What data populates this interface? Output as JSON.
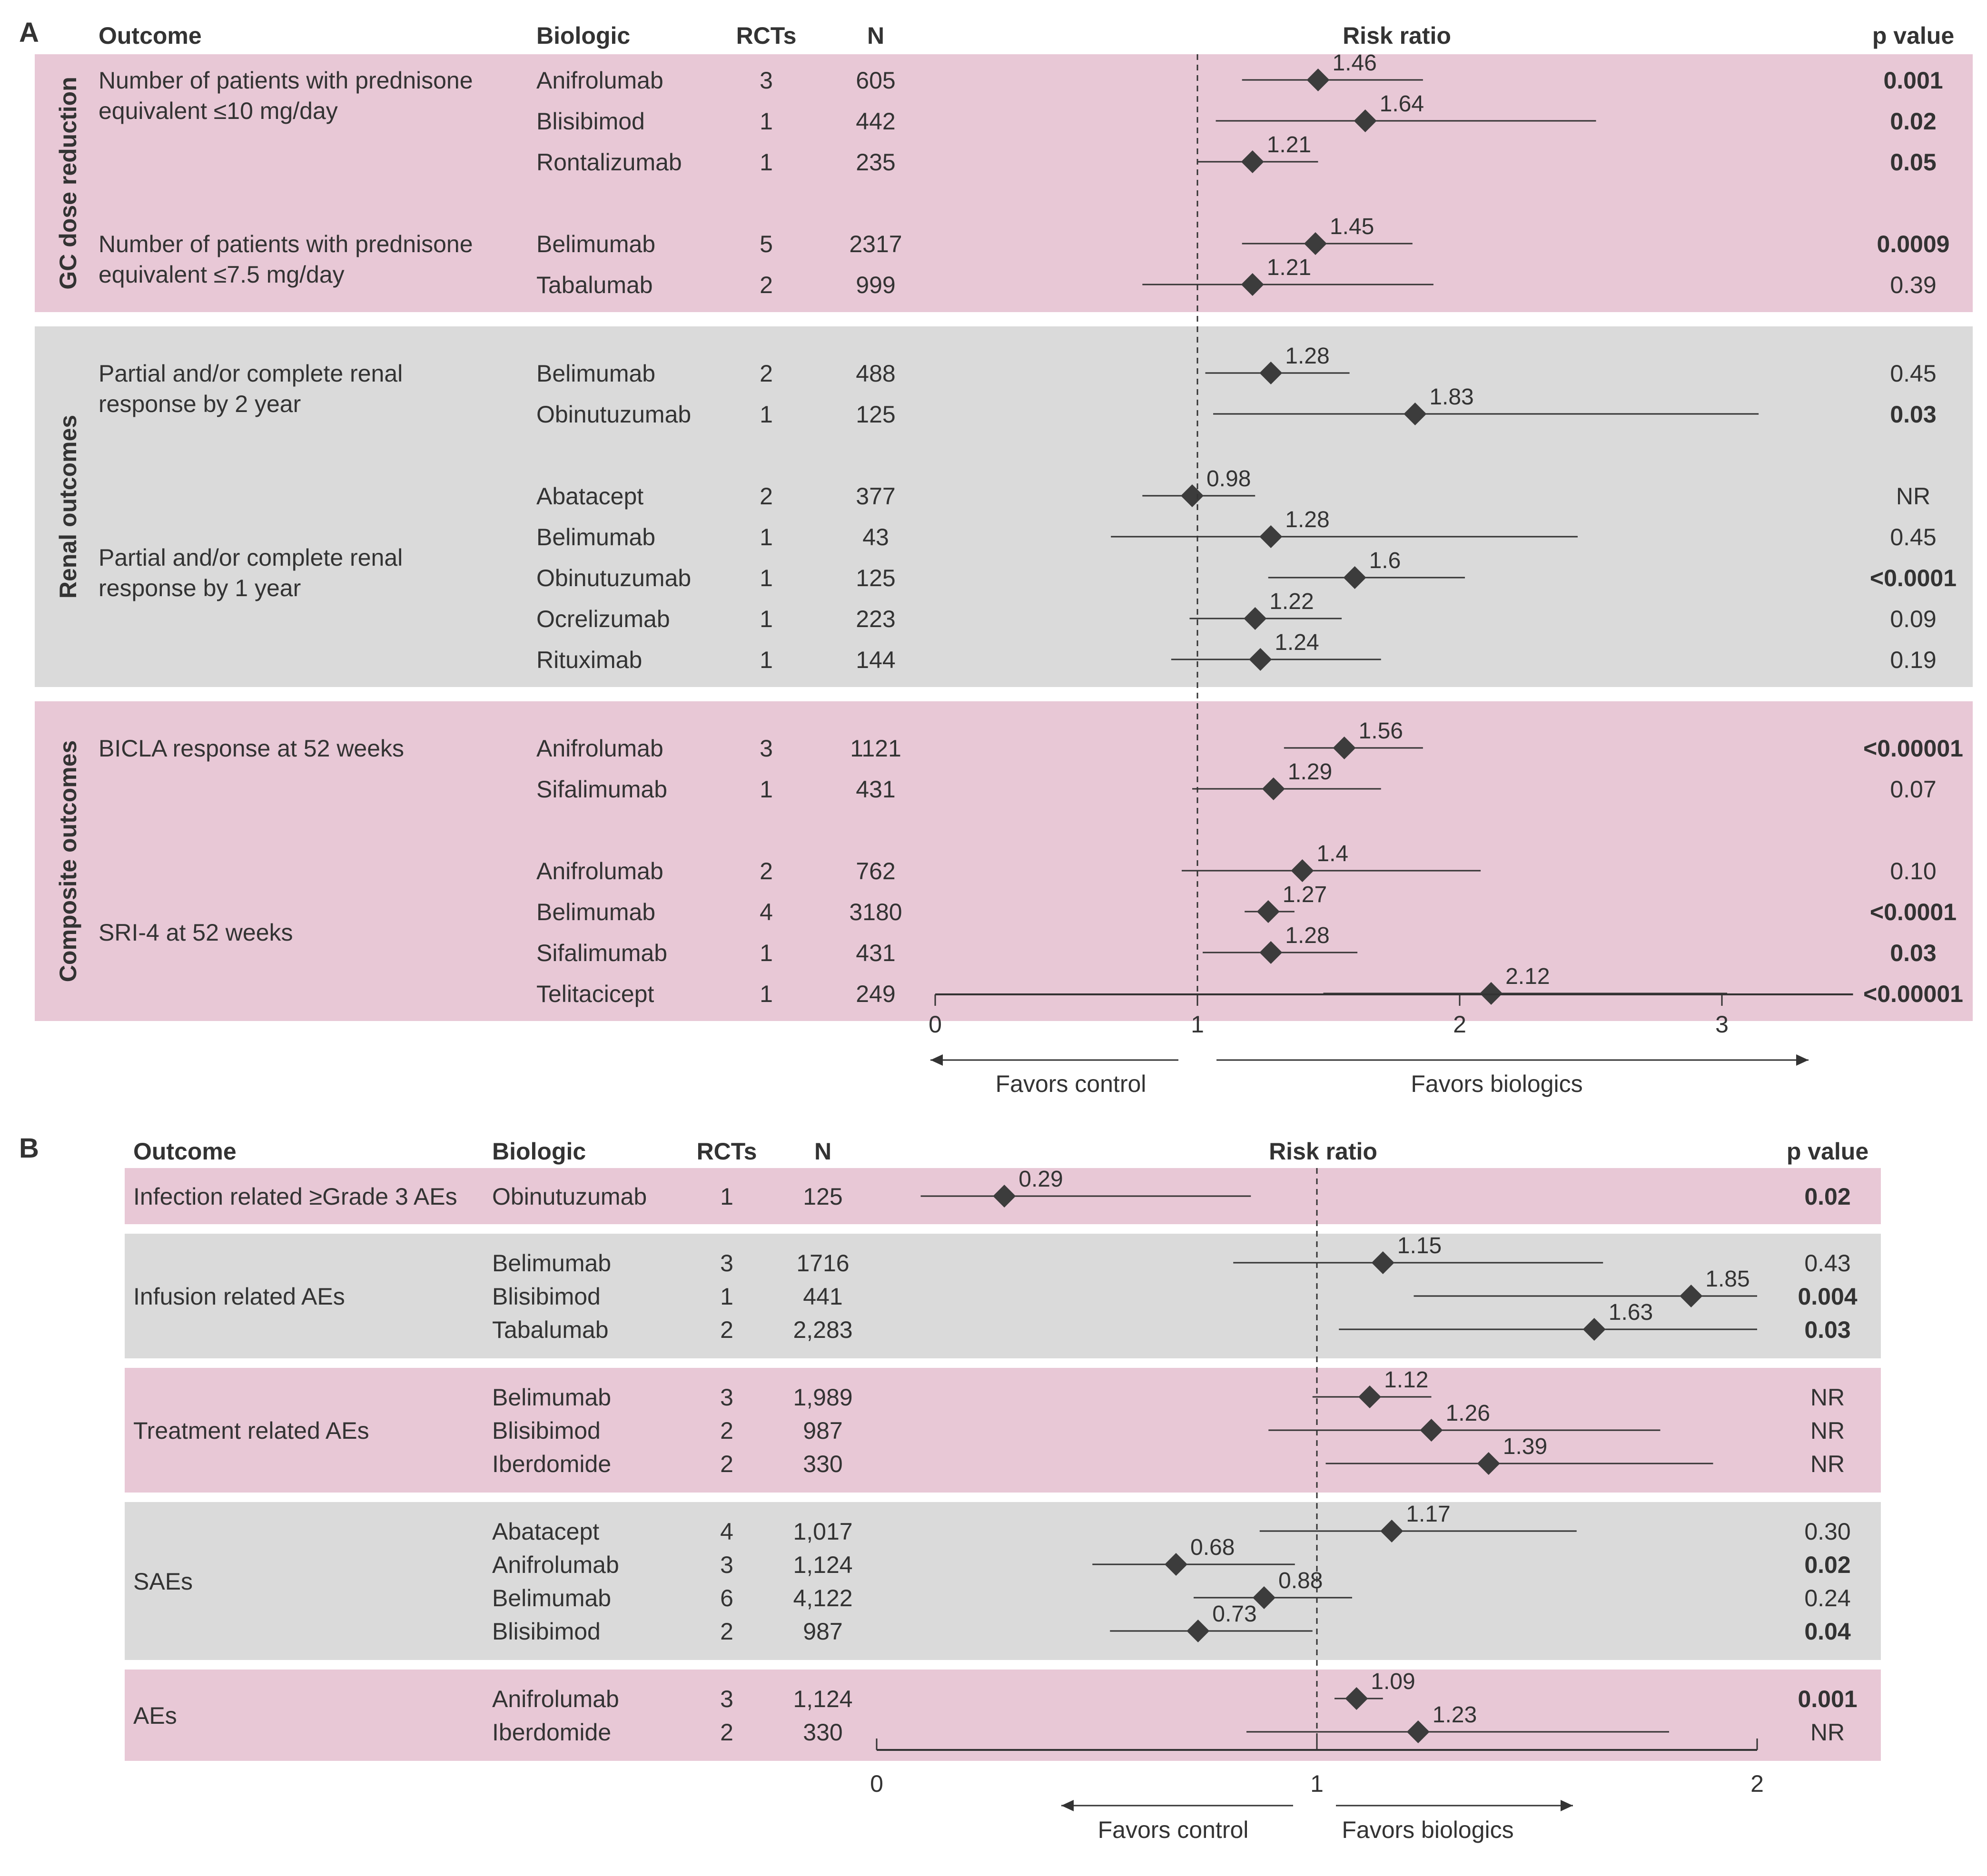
{
  "colors": {
    "pink_band": "#e8c8d6",
    "gray_band": "#dadada",
    "ink": "#333333",
    "marker": "#3c3c3c"
  },
  "chart_data": [
    {
      "panel": "A",
      "type": "forest",
      "headers": {
        "outcome": "Outcome",
        "biologic": "Biologic",
        "rcts": "RCTs",
        "n": "N",
        "plot": "Risk ratio",
        "p": "p value"
      },
      "x_ticks": [
        "0",
        "1",
        "2",
        "3"
      ],
      "xlim": [
        0,
        3.5
      ],
      "reference_line": 1,
      "favors_left": "Favors control",
      "favors_right": "Favors biologics",
      "groups": [
        {
          "label": "GC dose reduction",
          "band": "pink",
          "outcomes": [
            {
              "label": [
                "Number of patients with prednisone",
                "equivalent ≤10 mg/day"
              ],
              "rows": [
                {
                  "biologic": "Anifrolumab",
                  "rcts": "3",
                  "n": "605",
                  "rr": 1.46,
                  "rr_label": "1.46",
                  "ci": [
                    1.17,
                    1.86
                  ],
                  "p": "0.001",
                  "bold": true
                },
                {
                  "biologic": "Blisibimod",
                  "rcts": "1",
                  "n": "442",
                  "rr": 1.64,
                  "rr_label": "1.64",
                  "ci": [
                    1.07,
                    2.52
                  ],
                  "p": "0.02",
                  "bold": true
                },
                {
                  "biologic": "Rontalizumab",
                  "rcts": "1",
                  "n": "235",
                  "rr": 1.21,
                  "rr_label": "1.21",
                  "ci": [
                    1.0,
                    1.46
                  ],
                  "p": "0.05",
                  "bold": true
                }
              ]
            },
            {
              "label": [
                "Number of patients with prednisone",
                "equivalent ≤7.5 mg/day"
              ],
              "rows": [
                {
                  "biologic": "Belimumab",
                  "rcts": "5",
                  "n": "2317",
                  "rr": 1.45,
                  "rr_label": "1.45",
                  "ci": [
                    1.17,
                    1.82
                  ],
                  "p": "0.0009",
                  "bold": true
                },
                {
                  "biologic": "Tabalumab",
                  "rcts": "2",
                  "n": "999",
                  "rr": 1.21,
                  "rr_label": "1.21",
                  "ci": [
                    0.79,
                    1.9
                  ],
                  "p": "0.39",
                  "bold": false
                }
              ]
            }
          ]
        },
        {
          "label": "Renal outcomes",
          "band": "gray",
          "outcomes": [
            {
              "label": [
                "Partial and/or complete renal",
                " response by 2 year"
              ],
              "rows": [
                {
                  "biologic": "Belimumab",
                  "rcts": "2",
                  "n": "488",
                  "rr": 1.28,
                  "rr_label": "1.28",
                  "ci": [
                    1.03,
                    1.58
                  ],
                  "p": "0.45",
                  "bold": false
                },
                {
                  "biologic": "Obinutuzumab",
                  "rcts": "1",
                  "n": "125",
                  "rr": 1.83,
                  "rr_label": "1.83",
                  "ci": [
                    1.06,
                    3.14
                  ],
                  "p": "0.03",
                  "bold": true
                }
              ]
            },
            {
              "label": [
                "Partial and/or complete renal",
                "response by 1 year"
              ],
              "rows": [
                {
                  "biologic": "Abatacept",
                  "rcts": "2",
                  "n": "377",
                  "rr": 0.98,
                  "rr_label": "0.98",
                  "ci": [
                    0.79,
                    1.22
                  ],
                  "p": "NR",
                  "bold": false
                },
                {
                  "biologic": "Belimumab",
                  "rcts": "1",
                  "n": "43",
                  "rr": 1.28,
                  "rr_label": "1.28",
                  "ci": [
                    0.67,
                    2.45
                  ],
                  "p": "0.45",
                  "bold": false
                },
                {
                  "biologic": "Obinutuzumab",
                  "rcts": "1",
                  "n": "125",
                  "rr": 1.6,
                  "rr_label": "1.6",
                  "ci": [
                    1.27,
                    2.02
                  ],
                  "p": "<0.0001",
                  "bold": true
                },
                {
                  "biologic": "Ocrelizumab",
                  "rcts": "1",
                  "n": "223",
                  "rr": 1.22,
                  "rr_label": "1.22",
                  "ci": [
                    0.97,
                    1.55
                  ],
                  "p": "0.09",
                  "bold": false
                },
                {
                  "biologic": "Rituximab",
                  "rcts": "1",
                  "n": "144",
                  "rr": 1.24,
                  "rr_label": "1.24",
                  "ci": [
                    0.9,
                    1.7
                  ],
                  "p": "0.19",
                  "bold": false
                }
              ]
            }
          ]
        },
        {
          "label": "Composite outcomes",
          "band": "pink",
          "outcomes": [
            {
              "label": [
                "BICLA response at 52 weeks"
              ],
              "rows": [
                {
                  "biologic": "Anifrolumab",
                  "rcts": "3",
                  "n": "1121",
                  "rr": 1.56,
                  "rr_label": "1.56",
                  "ci": [
                    1.33,
                    1.86
                  ],
                  "p": "<0.00001",
                  "bold": true
                },
                {
                  "biologic": "Sifalimumab",
                  "rcts": "1",
                  "n": "431",
                  "rr": 1.29,
                  "rr_label": "1.29",
                  "ci": [
                    0.98,
                    1.7
                  ],
                  "p": "0.07",
                  "bold": false
                }
              ]
            },
            {
              "label": [
                "SRI-4 at 52 weeks"
              ],
              "rows": [
                {
                  "biologic": "Anifrolumab",
                  "rcts": "2",
                  "n": "762",
                  "rr": 1.4,
                  "rr_label": "1.4",
                  "ci": [
                    0.94,
                    2.08
                  ],
                  "p": "0.10",
                  "bold": false
                },
                {
                  "biologic": "Belimumab",
                  "rcts": "4",
                  "n": "3180",
                  "rr": 1.27,
                  "rr_label": "1.27",
                  "ci": [
                    1.18,
                    1.37
                  ],
                  "p": "<0.0001",
                  "bold": true
                },
                {
                  "biologic": "Sifalimumab",
                  "rcts": "1",
                  "n": "431",
                  "rr": 1.28,
                  "rr_label": "1.28",
                  "ci": [
                    1.02,
                    1.61
                  ],
                  "p": "0.03",
                  "bold": true
                },
                {
                  "biologic": "Telitacicept",
                  "rcts": "1",
                  "n": "249",
                  "rr": 2.12,
                  "rr_label": "2.12",
                  "ci": [
                    1.48,
                    3.02
                  ],
                  "p": "<0.00001",
                  "bold": true
                }
              ]
            }
          ]
        }
      ]
    },
    {
      "panel": "B",
      "type": "forest",
      "headers": {
        "outcome": "Outcome",
        "biologic": "Biologic",
        "rcts": "RCTs",
        "n": "N",
        "plot": "Risk ratio",
        "p": "p value"
      },
      "x_ticks": [
        "0",
        "1",
        "2"
      ],
      "xlim": [
        0,
        2
      ],
      "reference_line": 1,
      "favors_left": "Favors control",
      "favors_right": "Favors biologics",
      "groups": [
        {
          "label": "Infection related ≥Grade 3 AEs",
          "band": "pink",
          "rows": [
            {
              "biologic": "Obinutuzumab",
              "rcts": "1",
              "n": "125",
              "rr": 0.29,
              "rr_label": "0.29",
              "ci": [
                0.1,
                0.85
              ],
              "p": "0.02",
              "bold": true
            }
          ]
        },
        {
          "label": "Infusion related AEs",
          "band": "gray",
          "rows": [
            {
              "biologic": "Belimumab",
              "rcts": "3",
              "n": "1716",
              "rr": 1.15,
              "rr_label": "1.15",
              "ci": [
                0.81,
                1.65
              ],
              "p": "0.43",
              "bold": false
            },
            {
              "biologic": "Blisibimod",
              "rcts": "1",
              "n": "441",
              "rr": 1.85,
              "rr_label": "1.85",
              "ci": [
                1.22,
                2.0
              ],
              "p": "0.004",
              "bold": true
            },
            {
              "biologic": "Tabalumab",
              "rcts": "2",
              "n": "2,283",
              "rr": 1.63,
              "rr_label": "1.63",
              "ci": [
                1.05,
                2.0
              ],
              "p": "0.03",
              "bold": true
            }
          ]
        },
        {
          "label": "Treatment related AEs",
          "band": "pink",
          "rows": [
            {
              "biologic": "Belimumab",
              "rcts": "3",
              "n": "1,989",
              "rr": 1.12,
              "rr_label": "1.12",
              "ci": [
                0.99,
                1.26
              ],
              "p": "NR",
              "bold": false
            },
            {
              "biologic": "Blisibimod",
              "rcts": "2",
              "n": "987",
              "rr": 1.26,
              "rr_label": "1.26",
              "ci": [
                0.89,
                1.78
              ],
              "p": "NR",
              "bold": false
            },
            {
              "biologic": "Iberdomide",
              "rcts": "2",
              "n": "330",
              "rr": 1.39,
              "rr_label": "1.39",
              "ci": [
                1.02,
                1.9
              ],
              "p": "NR",
              "bold": false
            }
          ]
        },
        {
          "label": "SAEs",
          "band": "gray",
          "rows": [
            {
              "biologic": "Abatacept",
              "rcts": "4",
              "n": "1,017",
              "rr": 1.17,
              "rr_label": "1.17",
              "ci": [
                0.87,
                1.59
              ],
              "p": "0.30",
              "bold": false
            },
            {
              "biologic": "Anifrolumab",
              "rcts": "3",
              "n": "1,124",
              "rr": 0.68,
              "rr_label": "0.68",
              "ci": [
                0.49,
                0.95
              ],
              "p": "0.02",
              "bold": true
            },
            {
              "biologic": "Belimumab",
              "rcts": "6",
              "n": "4,122",
              "rr": 0.88,
              "rr_label": "0.88",
              "ci": [
                0.72,
                1.08
              ],
              "p": "0.24",
              "bold": false
            },
            {
              "biologic": "Blisibimod",
              "rcts": "2",
              "n": "987",
              "rr": 0.73,
              "rr_label": "0.73",
              "ci": [
                0.53,
                0.99
              ],
              "p": "0.04",
              "bold": true
            }
          ]
        },
        {
          "label": "AEs",
          "band": "pink",
          "rows": [
            {
              "biologic": "Anifrolumab",
              "rcts": "3",
              "n": "1,124",
              "rr": 1.09,
              "rr_label": "1.09",
              "ci": [
                1.04,
                1.15
              ],
              "p": "0.001",
              "bold": true
            },
            {
              "biologic": "Iberdomide",
              "rcts": "2",
              "n": "330",
              "rr": 1.23,
              "rr_label": "1.23",
              "ci": [
                0.84,
                1.8
              ],
              "p": "NR",
              "bold": false
            }
          ]
        }
      ]
    }
  ]
}
